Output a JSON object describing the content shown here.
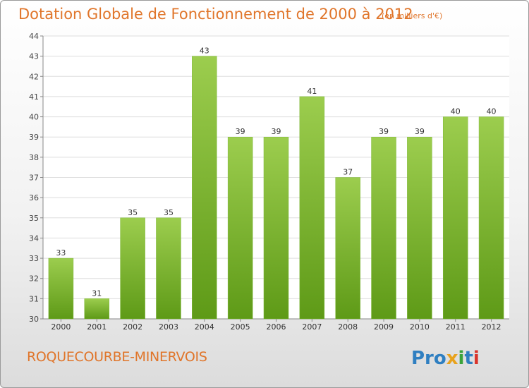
{
  "header": {
    "title": "Dotation Globale de Fonctionnement de 2000 à 2012",
    "unit_note": "(en milliers d'€)"
  },
  "footer": {
    "commune": "ROQUECOURBE-MINERVOIS",
    "logo_text": "Proxiti"
  },
  "colors": {
    "bar_light": "#9ccd4e",
    "bar_dark": "#5e9a17",
    "accent": "#e0752a",
    "grid": "#dddddd"
  },
  "chart_data": {
    "type": "bar",
    "title": "Dotation Globale de Fonctionnement de 2000 à 2012",
    "subtitle": "(en milliers d'€)",
    "categories": [
      "2000",
      "2001",
      "2002",
      "2003",
      "2004",
      "2005",
      "2006",
      "2007",
      "2008",
      "2009",
      "2010",
      "2011",
      "2012"
    ],
    "values": [
      33,
      31,
      35,
      35,
      43,
      39,
      39,
      41,
      37,
      39,
      39,
      40,
      40
    ],
    "data_labels": [
      "33",
      "31",
      "35",
      "35",
      "43",
      "39",
      "39",
      "41",
      "37",
      "39",
      "39",
      "40",
      "40"
    ],
    "y_ticks": [
      30,
      31,
      32,
      33,
      34,
      35,
      36,
      37,
      38,
      39,
      40,
      41,
      42,
      43,
      44
    ],
    "ylim": [
      30,
      44
    ],
    "xlabel": "",
    "ylabel": "",
    "grid": true,
    "legend": "none"
  }
}
